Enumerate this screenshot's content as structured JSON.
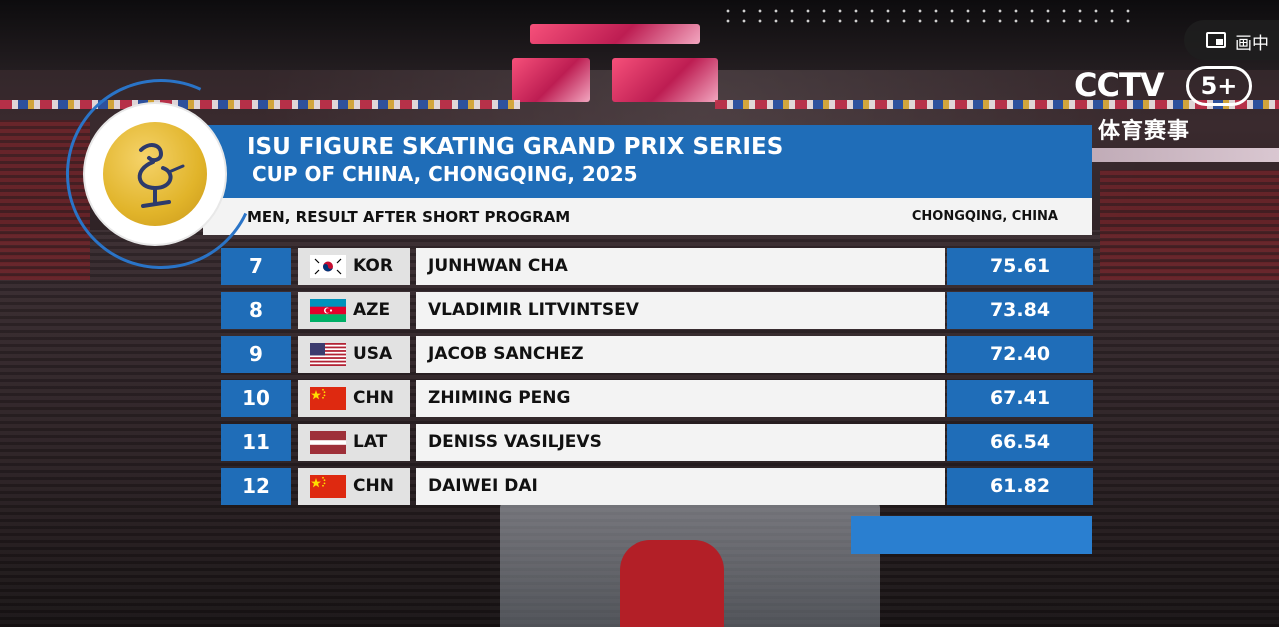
{
  "broadcast": {
    "logo": "CCTV",
    "channel": "5+",
    "channel_subtitle": "体育赛事",
    "pip_label": "画中"
  },
  "header": {
    "title": "ISU FIGURE SKATING GRAND PRIX SERIES",
    "event": "CUP OF CHINA, CHONGQING, 2025",
    "category": "MEN, RESULT AFTER SHORT PROGRAM",
    "location": "CHONGQING, CHINA"
  },
  "results": [
    {
      "rank": "7",
      "nation": "KOR",
      "flag": "korea",
      "name": "JUNHWAN CHA",
      "score": "75.61"
    },
    {
      "rank": "8",
      "nation": "AZE",
      "flag": "azerbaijan",
      "name": "VLADIMIR LITVINTSEV",
      "score": "73.84"
    },
    {
      "rank": "9",
      "nation": "USA",
      "flag": "usa",
      "name": "JACOB SANCHEZ",
      "score": "72.40"
    },
    {
      "rank": "10",
      "nation": "CHN",
      "flag": "china",
      "name": "ZHIMING PENG",
      "score": "67.41"
    },
    {
      "rank": "11",
      "nation": "LAT",
      "flag": "latvia",
      "name": "DENISS VASILJEVS",
      "score": "66.54"
    },
    {
      "rank": "12",
      "nation": "CHN",
      "flag": "china",
      "name": "DAIWEI DAI",
      "score": "61.82"
    }
  ],
  "colors": {
    "primary_blue": "#1f6db8",
    "row_bg": "#f3f3f3",
    "nation_bg": "#e2e2e2",
    "medal_gold": "#e1b42a"
  }
}
